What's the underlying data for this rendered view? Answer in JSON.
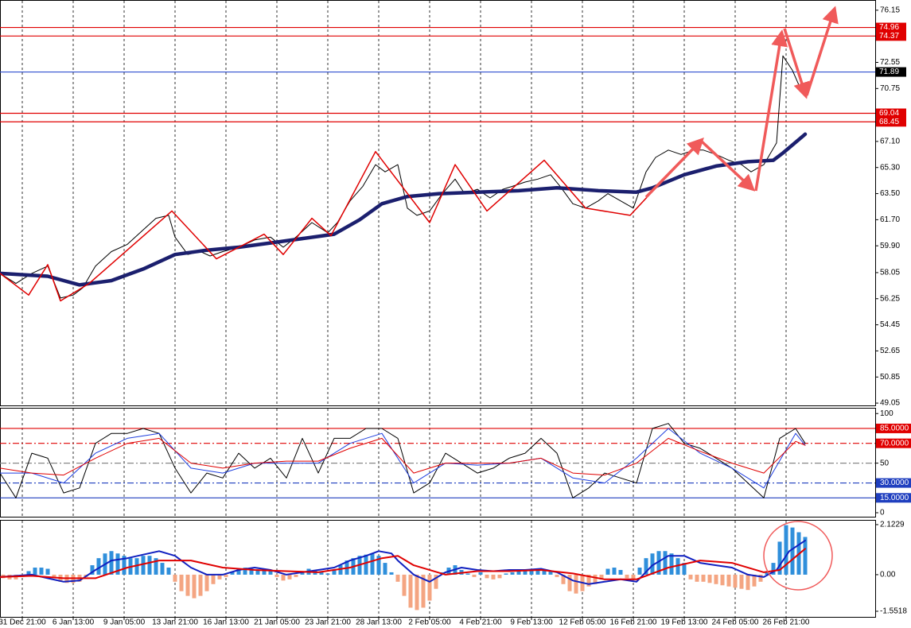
{
  "chart_data": [
    {
      "type": "line",
      "xlim": [
        0,
        275
      ],
      "ylim": [
        48.89,
        76.8
      ],
      "yticks": [
        76.15,
        72.55,
        70.75,
        {
          "value": 67.1,
          "label": "67.10"
        },
        {
          "value": 65.3,
          "label": "65.30"
        },
        {
          "value": 63.5,
          "label": "63.50"
        },
        {
          "value": 61.7,
          "label": "61.70"
        },
        {
          "value": 59.9,
          "label": "59.90"
        },
        58.05,
        56.25,
        54.45,
        52.65,
        50.85,
        49.05
      ],
      "levels": [
        {
          "value": 74.96,
          "color": "#e00000"
        },
        {
          "value": 74.37,
          "color": "#e00000"
        },
        {
          "value": 71.89,
          "color": "#3050d0",
          "label_color": "#000000"
        },
        {
          "value": 69.04,
          "color": "#e00000"
        },
        {
          "value": 68.45,
          "color": "#e00000"
        }
      ],
      "series": [
        {
          "type": "line",
          "color": "#000000",
          "x": [
            0,
            5,
            10,
            15,
            19,
            23,
            26,
            30,
            35,
            40,
            45,
            49,
            53,
            55,
            59,
            63,
            66,
            70,
            75,
            80,
            85,
            89,
            93,
            98,
            103,
            106,
            110,
            114,
            118,
            121,
            125,
            128,
            131,
            135,
            139,
            143,
            146,
            150,
            154,
            158,
            161,
            165,
            169,
            173,
            176,
            180,
            184,
            188,
            191,
            195,
            199,
            203,
            206,
            210,
            214,
            218,
            221,
            225,
            229,
            233,
            236,
            240,
            244,
            246,
            249,
            251,
            253
          ],
          "values": [
            58.0,
            57.3,
            58.0,
            58.5,
            56.3,
            56.5,
            57.0,
            58.5,
            59.5,
            60.0,
            61.0,
            61.8,
            62.0,
            60.5,
            59.3,
            59.5,
            59.2,
            59.5,
            59.8,
            60.3,
            60.5,
            59.8,
            60.5,
            61.5,
            60.8,
            61.5,
            63.0,
            64.0,
            65.5,
            65.0,
            65.5,
            62.5,
            62.0,
            62.3,
            63.5,
            64.5,
            63.5,
            63.8,
            63.2,
            63.8,
            64.0,
            64.3,
            64.5,
            64.8,
            64.0,
            62.8,
            62.5,
            63.0,
            63.5,
            63.0,
            62.5,
            65.0,
            66.0,
            66.5,
            66.2,
            66.5,
            66.5,
            66.2,
            65.8,
            65.5,
            65.0,
            65.5,
            67.0,
            73.0,
            72.0,
            71.0,
            70.5
          ]
        },
        {
          "type": "line",
          "color": "#1b1f6e",
          "x": [
            0,
            15,
            25,
            35,
            45,
            55,
            65,
            75,
            85,
            95,
            105,
            113,
            120,
            128,
            138,
            150,
            163,
            175,
            188,
            200,
            205,
            215,
            225,
            235,
            243,
            246,
            253
          ],
          "values": [
            58.0,
            57.8,
            57.2,
            57.5,
            58.3,
            59.3,
            59.6,
            59.8,
            60.1,
            60.4,
            60.7,
            61.7,
            62.8,
            63.3,
            63.5,
            63.6,
            63.7,
            63.9,
            63.7,
            63.6,
            63.9,
            64.8,
            65.4,
            65.7,
            65.8,
            66.3,
            67.6
          ]
        },
        {
          "type": "line",
          "color": "#e00000",
          "x": [
            0,
            9,
            15,
            19,
            28,
            54,
            68,
            83,
            89,
            98,
            104,
            118,
            135,
            143,
            153,
            171,
            184,
            198,
            220
          ],
          "values": [
            58.0,
            56.5,
            58.6,
            56.1,
            57.3,
            62.3,
            59.0,
            60.7,
            59.3,
            61.8,
            60.6,
            66.4,
            61.5,
            65.5,
            62.3,
            65.8,
            62.5,
            62.0,
            67.2
          ]
        }
      ]
    },
    {
      "type": "line",
      "xlim": [
        0,
        275
      ],
      "ylim": [
        -4,
        105
      ],
      "yticks": [
        100,
        {
          "value": 85,
          "label": "85.0000",
          "bg": "#e00000"
        },
        {
          "value": 70,
          "label": "70.0000",
          "bg": "#e00000"
        },
        50,
        {
          "value": 30,
          "label": "30.0000",
          "bg": "#1f3fbf"
        },
        {
          "value": 15,
          "label": "15.0000",
          "bg": "#1f3fbf"
        },
        0
      ],
      "levels": [
        {
          "value": 85,
          "color": "#e00000"
        },
        {
          "value": 70,
          "color": "#e00000",
          "dash": true
        },
        {
          "value": 50,
          "color": "#888888",
          "dash": true
        },
        {
          "value": 30,
          "color": "#1f3fbf",
          "dash": true
        },
        {
          "value": 15,
          "color": "#1f3fbf"
        }
      ],
      "series": [
        {
          "type": "line",
          "color": "#000000",
          "x": [
            0,
            5,
            10,
            15,
            20,
            25,
            30,
            35,
            40,
            45,
            50,
            55,
            60,
            65,
            70,
            75,
            80,
            85,
            90,
            95,
            100,
            105,
            110,
            115,
            120,
            125,
            130,
            135,
            140,
            145,
            150,
            155,
            160,
            165,
            170,
            175,
            180,
            185,
            190,
            195,
            200,
            205,
            210,
            215,
            220,
            225,
            230,
            235,
            240,
            245,
            250,
            253
          ],
          "values": [
            40,
            15,
            60,
            55,
            20,
            25,
            70,
            80,
            80,
            85,
            80,
            45,
            20,
            40,
            35,
            60,
            45,
            55,
            35,
            75,
            40,
            75,
            75,
            85,
            85,
            75,
            20,
            30,
            60,
            50,
            40,
            45,
            55,
            60,
            75,
            60,
            15,
            25,
            40,
            35,
            30,
            85,
            90,
            70,
            65,
            55,
            45,
            30,
            15,
            75,
            85,
            70
          ]
        },
        {
          "type": "line",
          "color": "#1f3fdf",
          "x": [
            0,
            10,
            20,
            30,
            40,
            50,
            60,
            70,
            80,
            90,
            100,
            110,
            120,
            130,
            140,
            150,
            160,
            170,
            180,
            190,
            200,
            210,
            220,
            230,
            240,
            250,
            253
          ],
          "values": [
            40,
            40,
            30,
            60,
            75,
            80,
            45,
            40,
            50,
            50,
            50,
            70,
            80,
            30,
            50,
            48,
            50,
            55,
            35,
            30,
            55,
            85,
            60,
            45,
            25,
            80,
            68
          ]
        },
        {
          "type": "line",
          "color": "#e00000",
          "x": [
            0,
            10,
            20,
            30,
            40,
            50,
            60,
            70,
            80,
            90,
            100,
            110,
            120,
            130,
            140,
            150,
            160,
            170,
            180,
            190,
            200,
            210,
            220,
            230,
            240,
            250,
            253
          ],
          "values": [
            45,
            40,
            38,
            55,
            70,
            75,
            50,
            45,
            50,
            52,
            52,
            65,
            75,
            40,
            50,
            50,
            50,
            55,
            40,
            38,
            50,
            75,
            62,
            50,
            40,
            72,
            68
          ]
        }
      ]
    },
    {
      "type": "bar",
      "xlim": [
        0,
        275
      ],
      "ylim": [
        -1.79,
        2.29
      ],
      "yticks": [
        2.1229,
        {
          "value": 0,
          "label": "0.00"
        },
        -1.5518
      ],
      "xticks": [
        {
          "value": 7,
          "label": "31 Dec 21:00"
        },
        {
          "value": 23,
          "label": "6 Jan 13:00"
        },
        {
          "value": 39,
          "label": "9 Jan 05:00"
        },
        {
          "value": 55,
          "label": "13 Jan 21:00"
        },
        {
          "value": 71,
          "label": "16 Jan 13:00"
        },
        {
          "value": 87,
          "label": "21 Jan 05:00"
        },
        {
          "value": 103,
          "label": "23 Jan 21:00"
        },
        {
          "value": 119,
          "label": "28 Jan 13:00"
        },
        {
          "value": 135,
          "label": "2 Feb 05:00"
        },
        {
          "value": 151,
          "label": "4 Feb 21:00"
        },
        {
          "value": 167,
          "label": "9 Feb 13:00"
        },
        {
          "value": 183,
          "label": "12 Feb 05:00"
        },
        {
          "value": 199,
          "label": "16 Feb 21:00"
        },
        {
          "value": 215,
          "label": "19 Feb 13:00"
        },
        {
          "value": 231,
          "label": "24 Feb 05:00"
        },
        {
          "value": 247,
          "label": "26 Feb 21:00"
        }
      ],
      "series": [
        {
          "type": "bar",
          "color": "#2f8fdb",
          "negative_color": "#f4a582",
          "x": [
            1,
            3,
            5,
            7,
            9,
            11,
            13,
            15,
            17,
            19,
            21,
            23,
            25,
            27,
            29,
            31,
            33,
            35,
            37,
            39,
            41,
            43,
            45,
            47,
            49,
            51,
            53,
            55,
            57,
            59,
            61,
            63,
            65,
            67,
            69,
            71,
            73,
            75,
            77,
            79,
            81,
            83,
            85,
            87,
            89,
            91,
            93,
            95,
            97,
            99,
            101,
            103,
            105,
            107,
            109,
            111,
            113,
            115,
            117,
            119,
            121,
            123,
            125,
            127,
            129,
            131,
            133,
            135,
            137,
            139,
            141,
            143,
            145,
            147,
            149,
            151,
            153,
            155,
            157,
            159,
            161,
            163,
            165,
            167,
            169,
            171,
            173,
            175,
            177,
            179,
            181,
            183,
            185,
            187,
            189,
            191,
            193,
            195,
            197,
            199,
            201,
            203,
            205,
            207,
            209,
            211,
            213,
            215,
            217,
            219,
            221,
            223,
            225,
            227,
            229,
            231,
            233,
            235,
            237,
            239,
            241,
            243,
            245,
            247,
            249,
            251,
            253
          ],
          "values": [
            -0.15,
            -0.2,
            -0.2,
            -0.1,
            0.15,
            0.3,
            0.3,
            0.25,
            -0.1,
            -0.3,
            -0.35,
            -0.35,
            -0.3,
            -0.1,
            0.4,
            0.7,
            0.9,
            1.0,
            0.9,
            0.8,
            0.7,
            0.7,
            0.8,
            0.8,
            0.7,
            0.5,
            0.3,
            -0.3,
            -0.7,
            -0.9,
            -1.0,
            -0.9,
            -0.7,
            -0.4,
            -0.2,
            -0.1,
            0.1,
            0.25,
            0.3,
            0.25,
            0.2,
            0.25,
            0.15,
            -0.1,
            -0.25,
            -0.2,
            -0.1,
            0.15,
            0.25,
            0.2,
            0.1,
            0.05,
            0.2,
            0.4,
            0.6,
            0.7,
            0.8,
            0.85,
            0.9,
            0.8,
            0.5,
            0.1,
            -0.3,
            -0.9,
            -1.4,
            -1.5,
            -1.4,
            -1.1,
            -0.6,
            0.1,
            0.3,
            0.4,
            0.2,
            0.05,
            -0.1,
            0.1,
            -0.15,
            -0.2,
            -0.15,
            0.05,
            0.1,
            0.15,
            0.2,
            0.2,
            0.25,
            0.2,
            0.15,
            -0.1,
            -0.4,
            -0.7,
            -0.8,
            -0.7,
            -0.5,
            -0.4,
            -0.2,
            0.25,
            0.3,
            0.2,
            -0.15,
            -0.2,
            0.3,
            0.7,
            0.9,
            1.0,
            1.0,
            0.9,
            0.7,
            0.5,
            -0.2,
            -0.3,
            -0.3,
            -0.35,
            -0.4,
            -0.45,
            -0.5,
            -0.55,
            -0.6,
            -0.65,
            -0.5,
            -0.3,
            0.1,
            0.5,
            1.4,
            2.1,
            2.0,
            1.8,
            1.6
          ]
        },
        {
          "type": "line",
          "color": "#1020c0",
          "x": [
            0,
            10,
            15,
            20,
            25,
            30,
            35,
            40,
            45,
            50,
            55,
            60,
            65,
            70,
            75,
            80,
            85,
            90,
            95,
            100,
            105,
            110,
            115,
            119,
            123,
            125,
            130,
            135,
            140,
            145,
            150,
            155,
            160,
            165,
            170,
            175,
            180,
            185,
            190,
            195,
            200,
            205,
            210,
            215,
            220,
            225,
            230,
            235,
            240,
            244,
            248,
            253
          ],
          "values": [
            -0.1,
            0.0,
            -0.15,
            -0.3,
            -0.25,
            0.2,
            0.6,
            0.7,
            0.85,
            1.0,
            0.8,
            0.3,
            0.0,
            0.0,
            0.2,
            0.3,
            0.2,
            0.0,
            0.1,
            0.2,
            0.3,
            0.6,
            0.8,
            1.0,
            0.9,
            0.6,
            0.0,
            -0.3,
            0.1,
            0.3,
            0.2,
            0.15,
            0.2,
            0.2,
            0.25,
            0.1,
            -0.25,
            -0.4,
            -0.3,
            -0.2,
            -0.3,
            0.4,
            0.8,
            0.8,
            0.5,
            0.4,
            0.3,
            0.0,
            -0.1,
            0.2,
            1.0,
            1.45
          ]
        },
        {
          "type": "line",
          "color": "#e00000",
          "x": [
            0,
            10,
            20,
            30,
            40,
            50,
            60,
            70,
            80,
            90,
            100,
            110,
            120,
            125,
            130,
            140,
            150,
            160,
            170,
            180,
            190,
            200,
            210,
            220,
            230,
            240,
            245,
            253
          ],
          "values": [
            -0.1,
            -0.05,
            -0.15,
            -0.15,
            0.3,
            0.6,
            0.6,
            0.3,
            0.2,
            0.15,
            0.1,
            0.3,
            0.7,
            0.8,
            0.4,
            0.0,
            0.15,
            0.15,
            0.2,
            0.05,
            -0.2,
            -0.2,
            0.3,
            0.6,
            0.5,
            0.1,
            0.2,
            1.1
          ]
        }
      ]
    }
  ]
}
